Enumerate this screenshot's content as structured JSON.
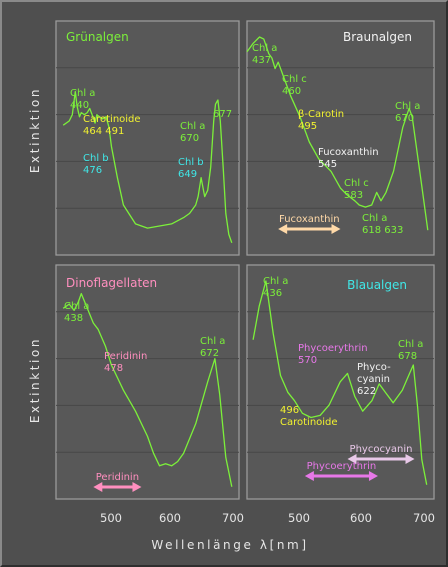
{
  "figure": {
    "y_label": "Extinktion",
    "x_label": "Wellenlänge λ[nm]",
    "x_ticks": [
      "500",
      "600",
      "700"
    ]
  },
  "colors": {
    "curve": "#7cf03a",
    "chl_a": "#7cf03a",
    "chl_b": "#40e8e8",
    "yellow": "#f2f230",
    "peach": "#ffd9a8",
    "pink": "#ff8fbf",
    "magenta": "#e778e8",
    "lavender": "#e8c8e8",
    "white": "#f2f2f2"
  },
  "chart_data": [
    {
      "type": "line",
      "title": "Grünalgen",
      "x": [
        420,
        430,
        435,
        440,
        443,
        447,
        450,
        455,
        460,
        464,
        468,
        473,
        476,
        480,
        485,
        491,
        496,
        500,
        510,
        520,
        540,
        560,
        580,
        600,
        620,
        630,
        640,
        644,
        649,
        655,
        660,
        665,
        670,
        673,
        677,
        681,
        686,
        690,
        695,
        700
      ],
      "y": [
        0.58,
        0.6,
        0.63,
        0.74,
        0.67,
        0.62,
        0.64,
        0.63,
        0.64,
        0.66,
        0.63,
        0.59,
        0.63,
        0.62,
        0.61,
        0.62,
        0.57,
        0.48,
        0.33,
        0.2,
        0.11,
        0.09,
        0.1,
        0.11,
        0.14,
        0.16,
        0.2,
        0.24,
        0.33,
        0.24,
        0.27,
        0.38,
        0.6,
        0.68,
        0.7,
        0.6,
        0.37,
        0.16,
        0.06,
        0.02
      ],
      "labels": [
        {
          "lines": [
            "Chl a",
            "440"
          ],
          "color": "#7cf03a"
        },
        {
          "lines": [
            "Carotinoide",
            "464   491"
          ],
          "color": "#f2f230"
        },
        {
          "lines": [
            "Chl b",
            "476"
          ],
          "color": "#40e8e8"
        },
        {
          "lines": [
            "Chl b",
            "649"
          ],
          "color": "#40e8e8"
        },
        {
          "lines": [
            "Chl a",
            "670"
          ],
          "color": "#7cf03a"
        },
        {
          "lines": [
            "677"
          ],
          "color": "#7cf03a"
        }
      ]
    },
    {
      "type": "line",
      "title": "Braunalgen",
      "x": [
        410,
        420,
        430,
        437,
        445,
        450,
        455,
        460,
        470,
        480,
        495,
        510,
        525,
        545,
        560,
        570,
        583,
        590,
        600,
        610,
        618,
        625,
        633,
        645,
        660,
        670,
        675,
        690,
        700
      ],
      "y": [
        0.93,
        0.97,
        1.0,
        0.99,
        0.92,
        0.9,
        0.85,
        0.88,
        0.8,
        0.72,
        0.62,
        0.5,
        0.42,
        0.36,
        0.28,
        0.25,
        0.22,
        0.2,
        0.19,
        0.2,
        0.26,
        0.22,
        0.26,
        0.36,
        0.57,
        0.66,
        0.62,
        0.3,
        0.08
      ],
      "labels": [
        {
          "lines": [
            "Chl a",
            "437"
          ],
          "color": "#7cf03a"
        },
        {
          "lines": [
            "Chl c",
            "460"
          ],
          "color": "#7cf03a"
        },
        {
          "lines": [
            "β-Carotin",
            "495"
          ],
          "color": "#f2f230"
        },
        {
          "lines": [
            "Fucoxanthin",
            "545"
          ],
          "color": "#f2f2f2"
        },
        {
          "lines": [
            "Chl c",
            "583"
          ],
          "color": "#7cf03a"
        },
        {
          "lines": [
            "Chl a",
            "618 633"
          ],
          "color": "#7cf03a"
        },
        {
          "lines": [
            "Chl a",
            "670"
          ],
          "color": "#7cf03a"
        }
      ],
      "bands": [
        {
          "label": "Fucoxanthin",
          "from": 460,
          "to": 560,
          "color": "#ffd9a8"
        }
      ]
    },
    {
      "type": "line",
      "title": "Dinoflagellaten",
      "x": [
        420,
        430,
        438,
        445,
        450,
        460,
        470,
        478,
        490,
        500,
        520,
        540,
        560,
        570,
        580,
        590,
        600,
        610,
        620,
        640,
        660,
        672,
        680,
        690,
        700
      ],
      "y": [
        0.87,
        0.89,
        0.86,
        0.9,
        0.94,
        0.87,
        0.8,
        0.77,
        0.69,
        0.6,
        0.48,
        0.38,
        0.26,
        0.18,
        0.12,
        0.13,
        0.12,
        0.14,
        0.18,
        0.32,
        0.52,
        0.63,
        0.46,
        0.16,
        0.02
      ],
      "labels": [
        {
          "lines": [
            "Chl a",
            "438"
          ],
          "color": "#7cf03a"
        },
        {
          "lines": [
            "Peridinin",
            "478"
          ],
          "color": "#ff8fbf"
        },
        {
          "lines": [
            "Chl a",
            "672"
          ],
          "color": "#7cf03a"
        }
      ],
      "bands": [
        {
          "label": "Peridinin",
          "from": 470,
          "to": 550,
          "color": "#ff8fbf"
        }
      ]
    },
    {
      "type": "line",
      "title": "Blaualgen",
      "x": [
        415,
        425,
        436,
        448,
        460,
        472,
        483,
        496,
        510,
        525,
        540,
        558,
        570,
        582,
        595,
        610,
        622,
        632,
        645,
        660,
        672,
        678,
        685,
        692,
        700
      ],
      "y": [
        0.72,
        0.88,
        1.0,
        0.75,
        0.55,
        0.47,
        0.43,
        0.37,
        0.35,
        0.36,
        0.41,
        0.52,
        0.56,
        0.45,
        0.38,
        0.43,
        0.51,
        0.47,
        0.42,
        0.48,
        0.56,
        0.6,
        0.4,
        0.15,
        0.03
      ],
      "labels": [
        {
          "lines": [
            "Chl a",
            "436"
          ],
          "color": "#7cf03a"
        },
        {
          "lines": [
            "Phycoerythrin",
            "570"
          ],
          "color": "#e778e8"
        },
        {
          "lines": [
            "Phyco-",
            "cyanin",
            "622"
          ],
          "color": "#f2f2f2"
        },
        {
          "lines": [
            "Chl a",
            "678"
          ],
          "color": "#7cf03a"
        },
        {
          "lines": [
            "496",
            "Carotinoide"
          ],
          "color": "#f2f230"
        }
      ],
      "bands": [
        {
          "label": "Phycocyanin",
          "from": 570,
          "to": 680,
          "color": "#e8c8e8"
        },
        {
          "label": "Phycoerythrin",
          "from": 500,
          "to": 620,
          "color": "#e778e8"
        }
      ]
    }
  ]
}
